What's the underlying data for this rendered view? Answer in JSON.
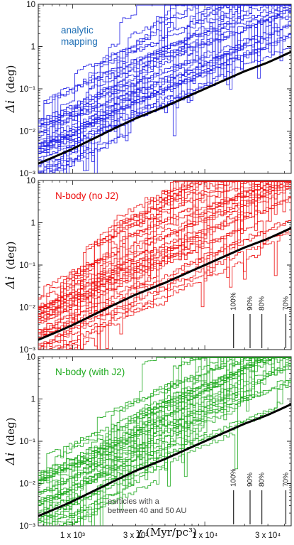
{
  "chart_data": {
    "type": "line",
    "x_scale": "log",
    "y_scale": "log",
    "xlim": [
      550,
      45000
    ],
    "ylim": [
      0.001,
      10
    ],
    "x_tick_labels": [
      {
        "value": 1000,
        "label": "1 x 10³"
      },
      {
        "value": 3000,
        "label": "3 x 10³"
      },
      {
        "value": 10000,
        "label": "1 x 10⁴"
      },
      {
        "value": 30000,
        "label": "3 x 10⁴"
      }
    ],
    "y_tick_labels": [
      {
        "value": 10,
        "label": "10"
      },
      {
        "value": 1,
        "label": "1"
      },
      {
        "value": 0.1,
        "label": "10⁻¹"
      },
      {
        "value": 0.01,
        "label": "10⁻²"
      },
      {
        "value": 0.001,
        "label": "10⁻³"
      }
    ],
    "ylabel_main": "Δi",
    "ylabel_unit": "(deg)",
    "xlabel": "χ (Myr/pc³)",
    "panels": [
      {
        "label": "analytic\nmapping",
        "label_lines": [
          "analytic",
          "mapping"
        ],
        "color": "#1f1fe6",
        "label_color": "#1f6fb5",
        "seed": 11,
        "annotation_lines": [],
        "percentile_markers": []
      },
      {
        "label": "N-body (no J2)",
        "label_lines": [
          "N-body (no J2)"
        ],
        "color": "#ee1111",
        "label_color": "#ee1111",
        "seed": 23,
        "annotation_lines": [],
        "percentile_markers": [
          {
            "x": 16500,
            "label": "100%"
          },
          {
            "x": 22000,
            "label": "90%"
          },
          {
            "x": 27000,
            "label": "80%"
          },
          {
            "x": 41000,
            "label": "70%"
          }
        ]
      },
      {
        "label": "N-body (with J2)",
        "label_lines": [
          "N-body (with J2)"
        ],
        "color": "#1faa1f",
        "label_color": "#1faa1f",
        "seed": 37,
        "annotation_lines": [
          "particles with a",
          "between 40 and 50 AU"
        ],
        "percentile_markers": [
          {
            "x": 16500,
            "label": "100%"
          },
          {
            "x": 22000,
            "label": "90%"
          },
          {
            "x": 27000,
            "label": "80%"
          },
          {
            "x": 41000,
            "label": "70%"
          }
        ]
      }
    ],
    "reference_curve": {
      "color": "#000000",
      "x": [
        550,
        800,
        1000,
        2000,
        3000,
        5000,
        10000,
        20000,
        30000,
        45000
      ],
      "y": [
        0.0017,
        0.0028,
        0.0038,
        0.011,
        0.02,
        0.038,
        0.1,
        0.26,
        0.42,
        0.75
      ]
    }
  }
}
